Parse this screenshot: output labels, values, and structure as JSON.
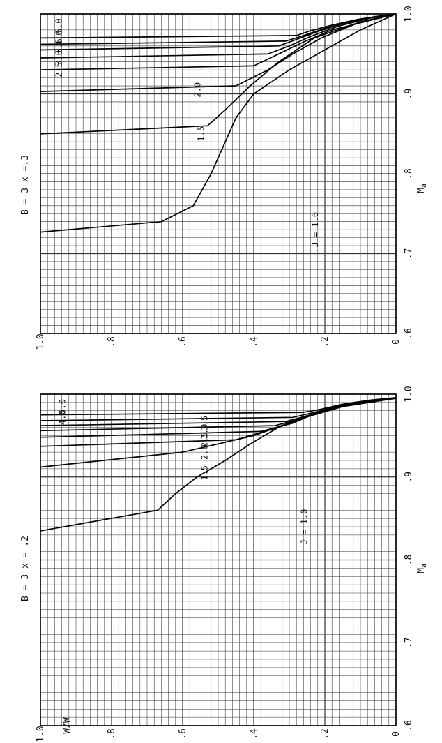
{
  "chart_data": [
    {
      "type": "line",
      "title": "B = 3     x = .2",
      "xlabel": "M",
      "xlabel_subscript": "a",
      "ylabel": "W/W",
      "ylabel_sub_top": "o",
      "ylabel_sub_bottom": "I",
      "xlim": [
        0.6,
        1.0
      ],
      "ylim": [
        0.0,
        1.0
      ],
      "xticks": [
        ".6",
        ".7",
        ".8",
        ".9",
        "1.0"
      ],
      "yticks": [
        "0",
        ".2",
        ".4",
        ".6",
        ".8",
        "1.0"
      ],
      "grid": true,
      "series": [
        {
          "name": "J = 1.0",
          "x": [
            0.835,
            0.86,
            0.88,
            0.9,
            0.92,
            0.94,
            0.96,
            0.98,
            0.99,
            0.995
          ],
          "y": [
            1.0,
            0.67,
            0.62,
            0.56,
            0.48,
            0.41,
            0.33,
            0.21,
            0.1,
            0.0
          ]
        },
        {
          "name": "1.5",
          "x": [
            0.912,
            0.93,
            0.95,
            0.97,
            0.985,
            0.995
          ],
          "y": [
            1.0,
            0.6,
            0.4,
            0.27,
            0.15,
            0.0
          ]
        },
        {
          "name": "2.0",
          "x": [
            0.937,
            0.945,
            0.96,
            0.975,
            0.99,
            0.995
          ],
          "y": [
            1.0,
            0.45,
            0.33,
            0.24,
            0.12,
            0.0
          ]
        },
        {
          "name": "2.5",
          "x": [
            0.948,
            0.955,
            0.965,
            0.978,
            0.99,
            0.995
          ],
          "y": [
            1.0,
            0.38,
            0.29,
            0.22,
            0.11,
            0.0
          ]
        },
        {
          "name": "3.0",
          "x": [
            0.956,
            0.962,
            0.97,
            0.98,
            0.99,
            0.995
          ],
          "y": [
            1.0,
            0.34,
            0.27,
            0.2,
            0.1,
            0.0
          ]
        },
        {
          "name": "3.5",
          "x": [
            0.962,
            0.967,
            0.974,
            0.983,
            0.991,
            0.995
          ],
          "y": [
            1.0,
            0.31,
            0.25,
            0.18,
            0.09,
            0.0
          ]
        },
        {
          "name": "4.0",
          "x": [
            0.968,
            0.972,
            0.978,
            0.985,
            0.992,
            0.995
          ],
          "y": [
            1.0,
            0.29,
            0.23,
            0.17,
            0.08,
            0.0
          ]
        },
        {
          "name": "5.0",
          "x": [
            0.975,
            0.978,
            0.982,
            0.988,
            0.993,
            0.996
          ],
          "y": [
            1.0,
            0.26,
            0.21,
            0.15,
            0.07,
            0.0
          ]
        }
      ],
      "curve_labels": [
        "J = 1.0",
        "1.5",
        "2.0",
        "2.5",
        "3.0",
        "3.5",
        "4.0",
        "5.0"
      ]
    },
    {
      "type": "line",
      "title": "B = 3     x =.3",
      "xlabel": "M",
      "xlabel_subscript": "a",
      "xlim": [
        0.6,
        1.0
      ],
      "ylim": [
        0.0,
        1.0
      ],
      "xticks": [
        ".6",
        ".7",
        ".8",
        ".9",
        "1.0"
      ],
      "yticks": [
        "0",
        ".2",
        ".4",
        ".6",
        ".8",
        "1.0"
      ],
      "grid": true,
      "series": [
        {
          "name": "J = 1.0",
          "x": [
            0.727,
            0.74,
            0.76,
            0.8,
            0.84,
            0.87,
            0.9,
            0.93,
            0.96,
            0.98,
            1.0
          ],
          "y": [
            1.0,
            0.66,
            0.57,
            0.52,
            0.48,
            0.45,
            0.4,
            0.3,
            0.18,
            0.1,
            0.0
          ]
        },
        {
          "name": "1.5",
          "x": [
            0.85,
            0.86,
            0.88,
            0.91,
            0.94,
            0.97,
            0.99,
            1.0
          ],
          "y": [
            1.0,
            0.53,
            0.48,
            0.41,
            0.33,
            0.23,
            0.1,
            0.0
          ]
        },
        {
          "name": "2.0",
          "x": [
            0.903,
            0.91,
            0.93,
            0.95,
            0.97,
            0.99,
            1.0
          ],
          "y": [
            1.0,
            0.45,
            0.36,
            0.29,
            0.21,
            0.1,
            0.0
          ]
        },
        {
          "name": "2.5",
          "x": [
            0.93,
            0.935,
            0.95,
            0.965,
            0.98,
            0.99,
            1.0
          ],
          "y": [
            1.0,
            0.4,
            0.33,
            0.26,
            0.18,
            0.09,
            0.0
          ]
        },
        {
          "name": "3.0",
          "x": [
            0.945,
            0.95,
            0.96,
            0.972,
            0.985,
            0.995,
            1.0
          ],
          "y": [
            1.0,
            0.36,
            0.3,
            0.24,
            0.16,
            0.07,
            0.0
          ]
        },
        {
          "name": "3.5",
          "x": [
            0.955,
            0.96,
            0.968,
            0.978,
            0.988,
            0.996,
            1.0
          ],
          "y": [
            1.0,
            0.33,
            0.28,
            0.22,
            0.15,
            0.06,
            0.0
          ]
        },
        {
          "name": "4.0",
          "x": [
            0.962,
            0.966,
            0.973,
            0.982,
            0.99,
            0.997,
            1.0
          ],
          "y": [
            1.0,
            0.31,
            0.26,
            0.2,
            0.13,
            0.05,
            0.0
          ]
        },
        {
          "name": "5.0",
          "x": [
            0.97,
            0.973,
            0.979,
            0.986,
            0.993,
            0.998,
            1.0
          ],
          "y": [
            1.0,
            0.28,
            0.24,
            0.18,
            0.11,
            0.04,
            0.0
          ]
        }
      ],
      "curve_labels": [
        "J = 1.0",
        "1.5",
        "2.0",
        "2.5",
        "3.0",
        "3.5",
        "4.0",
        "5.0"
      ]
    }
  ]
}
